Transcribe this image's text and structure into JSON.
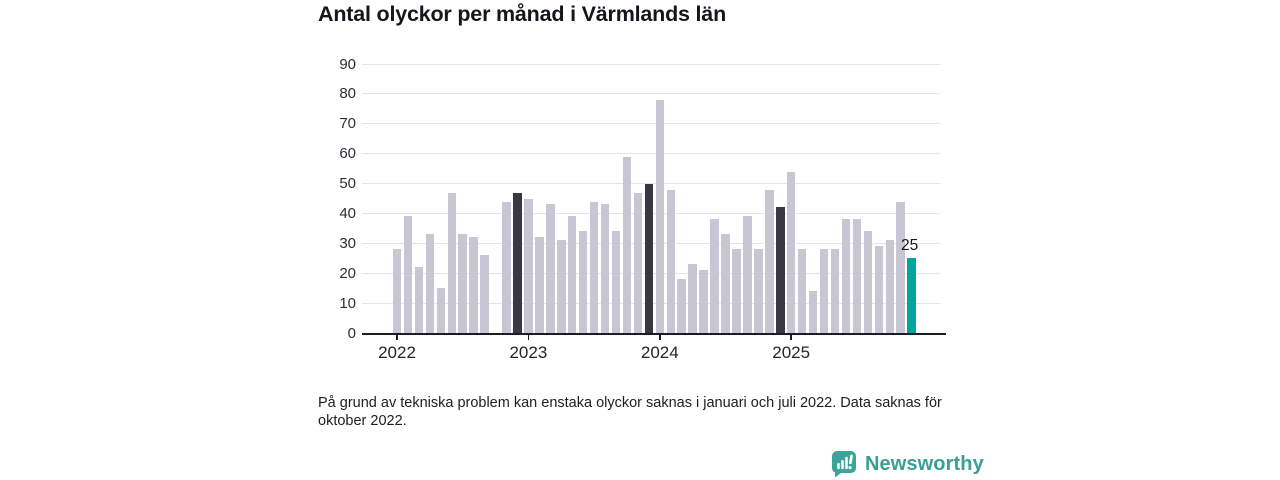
{
  "title": "Antal olyckor per månad i Värmlands län",
  "footnote": {
    "full": "På grund av tekniska problem kan enstaka olyckor saknas i januari och juli 2022. Data saknas för oktober 2022.",
    "lines": [
      "På grund av tekniska problem kan enstaka olyckor saknas i januari och juli 2022. Data saknas för",
      "oktober 2022."
    ]
  },
  "branding": {
    "label": "Newsworthy",
    "icon": "newsworthy-speech-bubble-bar-chart-icon"
  },
  "colors": {
    "bar_normal": "#c8c6d3",
    "bar_dark": "#393744",
    "bar_accent": "#00a59b",
    "gridline": "#e5e4eb",
    "axis": "#1c1c24",
    "brand_teal": "#3a9e96",
    "text": "#15151c"
  },
  "chart_data": {
    "type": "bar",
    "title": "Antal olyckor per månad i Värmlands län",
    "xlabel": "",
    "ylabel": "",
    "ylim": [
      0,
      90
    ],
    "yticks": [
      0,
      10,
      20,
      30,
      40,
      50,
      60,
      70,
      80,
      90
    ],
    "grid": "horizontal",
    "legend": "none",
    "note": "value null = data missing (oktober 2022)",
    "year_ticks": [
      {
        "label": "2022",
        "month_index": 0
      },
      {
        "label": "2023",
        "month_index": 12
      },
      {
        "label": "2024",
        "month_index": 24
      },
      {
        "label": "2025",
        "month_index": 36
      }
    ],
    "months": [
      {
        "month": "2022-01",
        "value": 28,
        "style": "normal"
      },
      {
        "month": "2022-02",
        "value": 39,
        "style": "normal"
      },
      {
        "month": "2022-03",
        "value": 22,
        "style": "normal"
      },
      {
        "month": "2022-04",
        "value": 33,
        "style": "normal"
      },
      {
        "month": "2022-05",
        "value": 15,
        "style": "normal"
      },
      {
        "month": "2022-06",
        "value": 47,
        "style": "normal"
      },
      {
        "month": "2022-07",
        "value": 33,
        "style": "normal"
      },
      {
        "month": "2022-08",
        "value": 32,
        "style": "normal"
      },
      {
        "month": "2022-09",
        "value": 26,
        "style": "normal"
      },
      {
        "month": "2022-10",
        "value": null,
        "style": "missing"
      },
      {
        "month": "2022-11",
        "value": 44,
        "style": "normal"
      },
      {
        "month": "2022-12",
        "value": 47,
        "style": "dark"
      },
      {
        "month": "2023-01",
        "value": 45,
        "style": "normal"
      },
      {
        "month": "2023-02",
        "value": 32,
        "style": "normal"
      },
      {
        "month": "2023-03",
        "value": 43,
        "style": "normal"
      },
      {
        "month": "2023-04",
        "value": 31,
        "style": "normal"
      },
      {
        "month": "2023-05",
        "value": 39,
        "style": "normal"
      },
      {
        "month": "2023-06",
        "value": 34,
        "style": "normal"
      },
      {
        "month": "2023-07",
        "value": 44,
        "style": "normal"
      },
      {
        "month": "2023-08",
        "value": 43,
        "style": "normal"
      },
      {
        "month": "2023-09",
        "value": 34,
        "style": "normal"
      },
      {
        "month": "2023-10",
        "value": 59,
        "style": "normal"
      },
      {
        "month": "2023-11",
        "value": 47,
        "style": "normal"
      },
      {
        "month": "2023-12",
        "value": 50,
        "style": "dark"
      },
      {
        "month": "2024-01",
        "value": 78,
        "style": "normal"
      },
      {
        "month": "2024-02",
        "value": 48,
        "style": "normal"
      },
      {
        "month": "2024-03",
        "value": 18,
        "style": "normal"
      },
      {
        "month": "2024-04",
        "value": 23,
        "style": "normal"
      },
      {
        "month": "2024-05",
        "value": 21,
        "style": "normal"
      },
      {
        "month": "2024-06",
        "value": 38,
        "style": "normal"
      },
      {
        "month": "2024-07",
        "value": 33,
        "style": "normal"
      },
      {
        "month": "2024-08",
        "value": 28,
        "style": "normal"
      },
      {
        "month": "2024-09",
        "value": 39,
        "style": "normal"
      },
      {
        "month": "2024-10",
        "value": 28,
        "style": "normal"
      },
      {
        "month": "2024-11",
        "value": 48,
        "style": "normal"
      },
      {
        "month": "2024-12",
        "value": 42,
        "style": "dark"
      },
      {
        "month": "2025-01",
        "value": 54,
        "style": "normal"
      },
      {
        "month": "2025-02",
        "value": 28,
        "style": "normal"
      },
      {
        "month": "2025-03",
        "value": 14,
        "style": "normal"
      },
      {
        "month": "2025-04",
        "value": 28,
        "style": "normal"
      },
      {
        "month": "2025-05",
        "value": 28,
        "style": "normal"
      },
      {
        "month": "2025-06",
        "value": 38,
        "style": "normal"
      },
      {
        "month": "2025-07",
        "value": 38,
        "style": "normal"
      },
      {
        "month": "2025-08",
        "value": 34,
        "style": "normal"
      },
      {
        "month": "2025-09",
        "value": 29,
        "style": "normal"
      },
      {
        "month": "2025-10",
        "value": 31,
        "style": "normal"
      },
      {
        "month": "2025-11",
        "value": 44,
        "style": "normal"
      },
      {
        "month": "2025-12",
        "value": 25,
        "style": "accent"
      }
    ],
    "annotation": {
      "month": "2025-12",
      "label": "25"
    }
  }
}
